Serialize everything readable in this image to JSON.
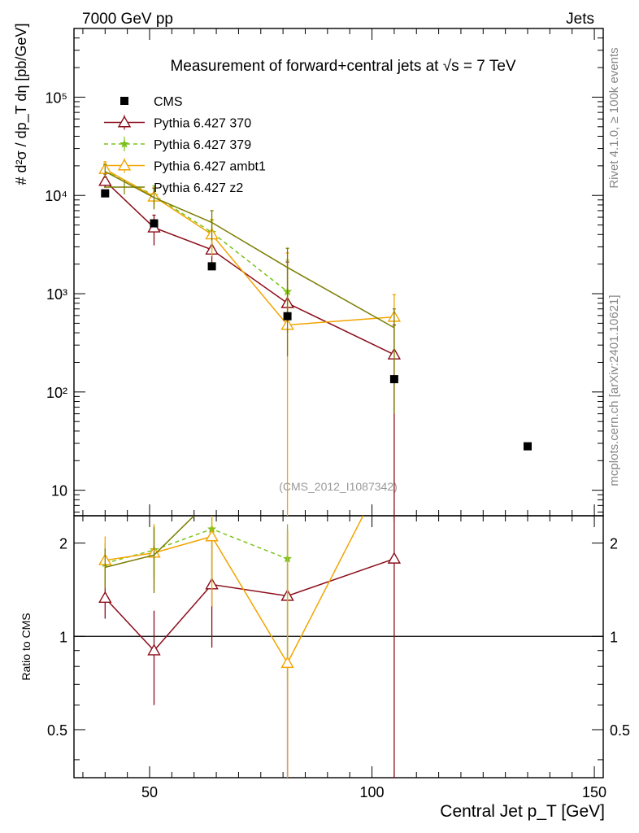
{
  "chart_data": {
    "type": "line",
    "header_left": "7000 GeV pp",
    "header_right": "Jets",
    "title": "Measurement of forward+central jets at √s = 7 TeV",
    "ylabel_main": "# d²σ / dp_T dη [pb/GeV]",
    "ylabel_ratio": "Ratio to CMS",
    "xlabel": "Central Jet p_T [GeV]",
    "analysis_id": "(CMS_2012_I1087342)",
    "side_text_top": "Rivet 4.1.0, ≥ 100k events",
    "side_text_bottom": "mcplots.cern.ch [arXiv:2401.10621]",
    "xlim": [
      33,
      152
    ],
    "ylim_main": [
      5.5,
      500000
    ],
    "ylim_ratio": [
      0.35,
      2.45
    ],
    "x_ticks": [
      {
        "v": 50,
        "label": "50"
      },
      {
        "v": 100,
        "label": "100"
      },
      {
        "v": 150,
        "label": "150"
      }
    ],
    "y_ticks_main": [
      {
        "v": 10,
        "label": "10"
      },
      {
        "v": 100,
        "label": "10²"
      },
      {
        "v": 1000,
        "label": "10³"
      },
      {
        "v": 10000,
        "label": "10⁴"
      },
      {
        "v": 100000,
        "label": "10⁵"
      }
    ],
    "y_ticks_ratio": [
      {
        "v": 0.5,
        "label": "0.5"
      },
      {
        "v": 1,
        "label": "1"
      },
      {
        "v": 2,
        "label": "2"
      }
    ],
    "data": {
      "name": "CMS",
      "x": [
        40,
        51,
        64,
        81,
        105,
        135
      ],
      "y": [
        10500,
        5200,
        1900,
        590,
        135,
        28
      ],
      "yerr": [
        0.04,
        0.04,
        0.04,
        0.04,
        0.04,
        0.04
      ]
    },
    "series": [
      {
        "name": "Pythia 6.427 370",
        "color": "#8b0d1a",
        "dash": "",
        "marker": "triangle",
        "x": [
          40,
          51,
          64,
          81,
          105
        ],
        "y": [
          14000,
          4700,
          2800,
          800,
          240
        ],
        "ylo": [
          12000,
          3100,
          1750,
          400,
          4
        ],
        "yhi": [
          16500,
          6300,
          3850,
          2100,
          480
        ]
      },
      {
        "name": "Pythia 6.427 379",
        "color": "#7ac21b",
        "dash": "5,4",
        "marker": "star",
        "x": [
          40,
          51,
          64,
          81
        ],
        "y": [
          18000,
          10000,
          4200,
          1050
        ],
        "ylo": [
          15500,
          8000,
          2800,
          420
        ],
        "yhi": [
          21000,
          12500,
          5600,
          2200
        ]
      },
      {
        "name": "Pythia 6.427 ambt1",
        "color": "#f2a400",
        "dash": "",
        "marker": "triangle",
        "x": [
          40,
          51,
          64,
          81,
          105
        ],
        "y": [
          18500,
          9700,
          4000,
          480,
          580
        ],
        "ylo": [
          15000,
          7400,
          2400,
          4,
          160
        ],
        "yhi": [
          22000,
          12000,
          5700,
          2600,
          980
        ]
      },
      {
        "name": "Pythia 6.427 z2",
        "color": "#7b7d00",
        "dash": "",
        "marker": "none",
        "x": [
          40,
          51,
          64,
          81,
          105
        ],
        "y": [
          17500,
          9500,
          5300,
          1850,
          450
        ],
        "ylo": [
          15000,
          7200,
          3500,
          230,
          60
        ],
        "yhi": [
          20500,
          11800,
          7000,
          2900,
          700
        ]
      }
    ],
    "ratio": [
      {
        "name": "Pythia 6.427 370",
        "x": [
          40,
          51,
          64,
          81,
          105
        ],
        "y": [
          1.33,
          0.9,
          1.47,
          1.35,
          1.78
        ],
        "ylo": [
          1.14,
          0.6,
          0.92,
          0.3,
          0.03
        ],
        "yhi": [
          1.58,
          1.21,
          2.02,
          2.2,
          2.45
        ]
      },
      {
        "name": "Pythia 6.427 379",
        "x": [
          40,
          51,
          64,
          81
        ],
        "y": [
          1.72,
          1.9,
          2.22,
          1.78
        ],
        "ylo": [
          1.47,
          1.55,
          1.5,
          0.72
        ],
        "yhi": [
          2.0,
          2.3,
          2.45,
          2.3
        ]
      },
      {
        "name": "Pythia 6.427 ambt1",
        "x": [
          40,
          51,
          64,
          81,
          98
        ],
        "y": [
          1.76,
          1.86,
          2.1,
          0.82,
          2.45
        ],
        "ylo": [
          1.43,
          1.42,
          1.25,
          0.3,
          2.45
        ],
        "yhi": [
          2.1,
          2.3,
          2.45,
          2.2,
          2.45
        ]
      },
      {
        "name": "Pythia 6.427 z2",
        "x": [
          40,
          51,
          60
        ],
        "y": [
          1.67,
          1.83,
          2.45
        ],
        "ylo": [
          1.43,
          1.38,
          2.45
        ],
        "yhi": [
          1.92,
          2.25,
          2.45
        ]
      }
    ]
  }
}
